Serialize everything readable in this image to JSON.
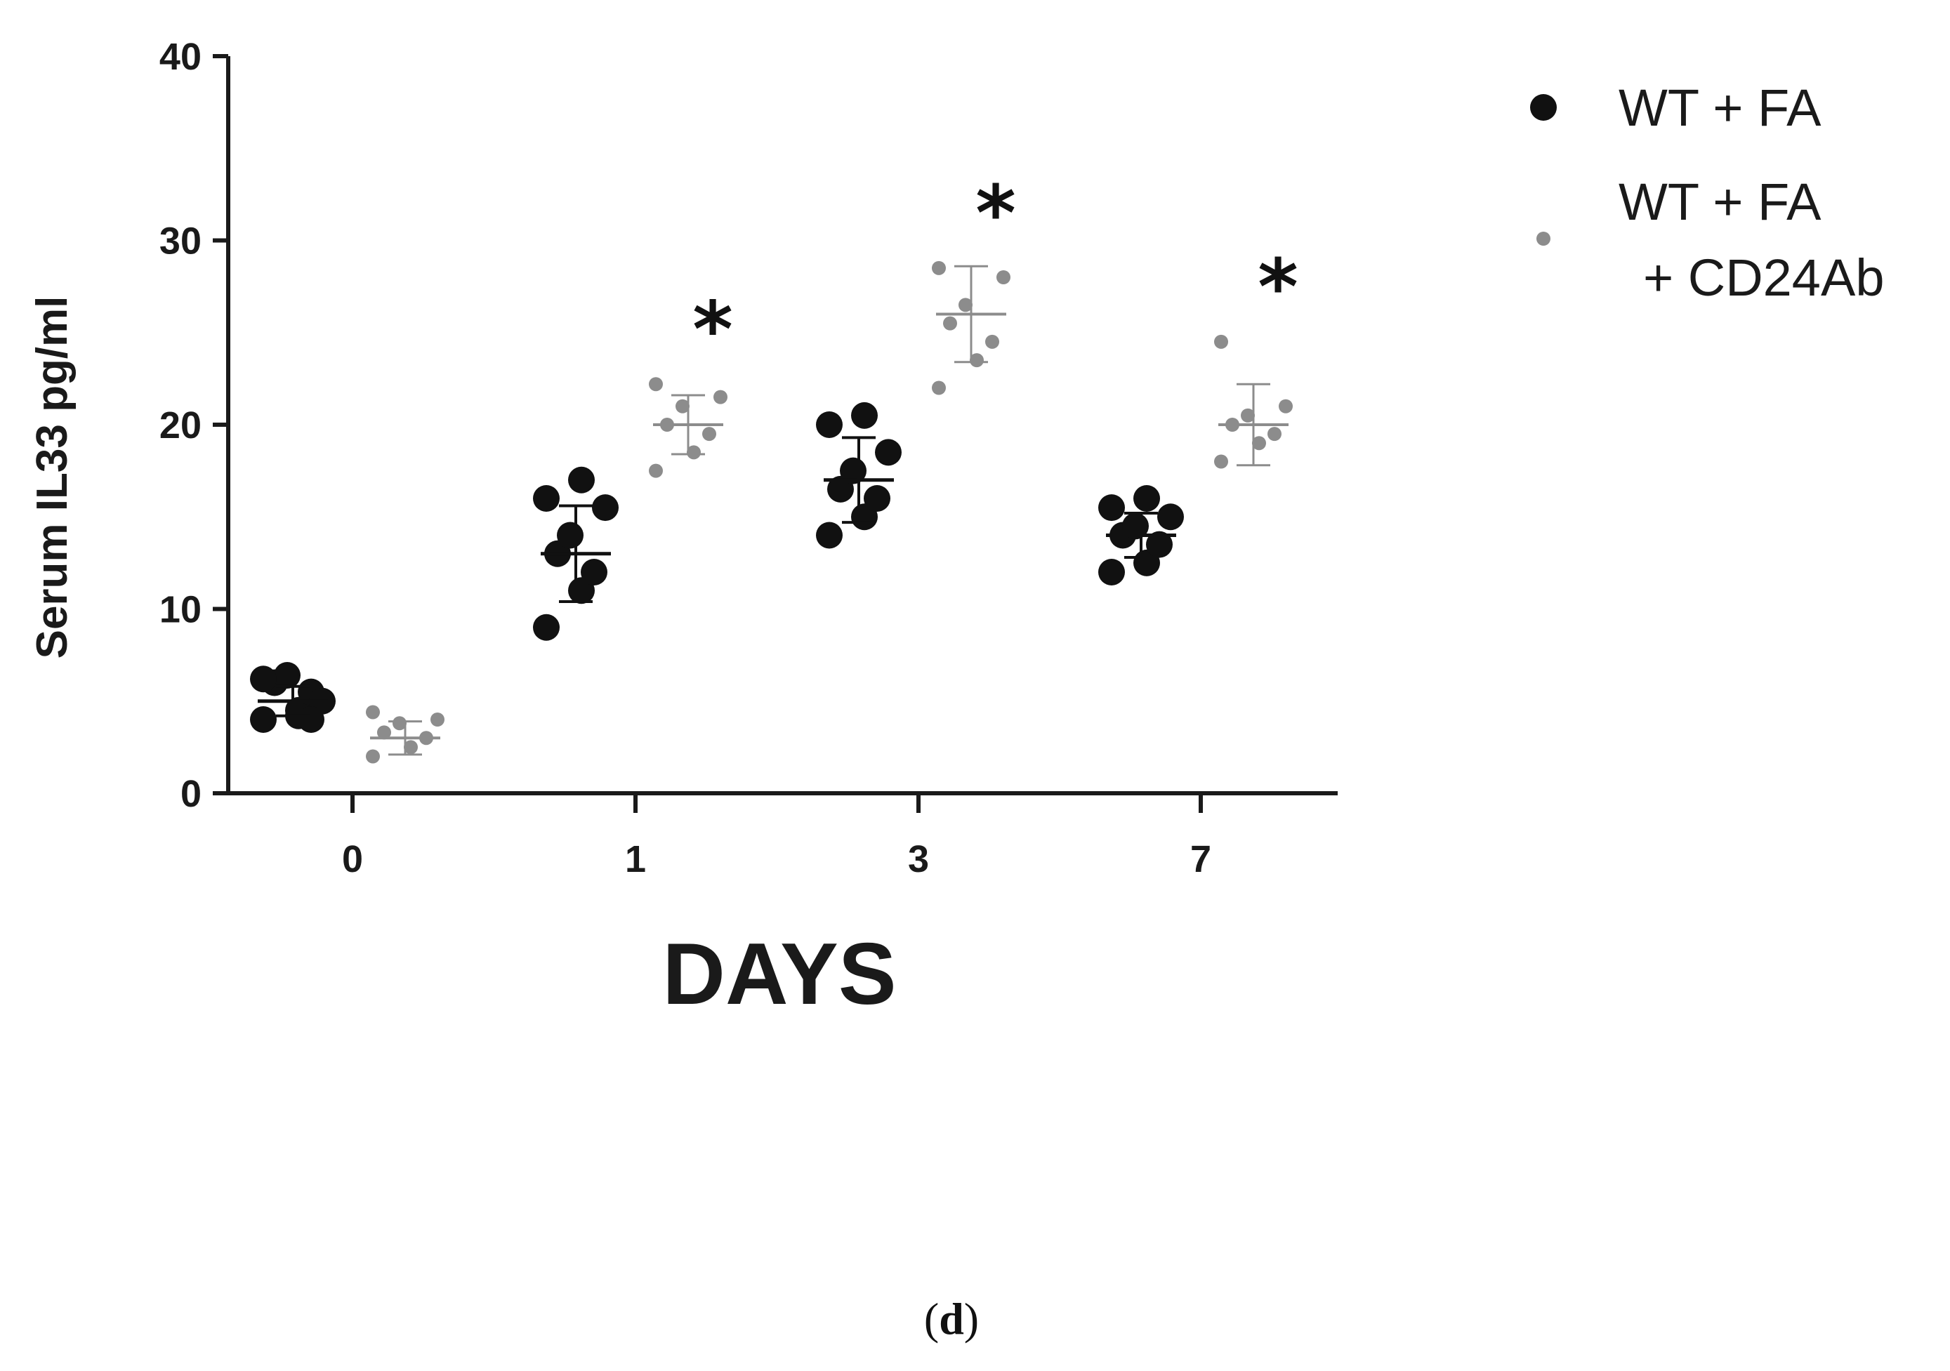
{
  "chart_data": {
    "type": "scatter",
    "ylabel": "Serum IL33 pg/ml",
    "xlabel": "DAYS",
    "ylim": [
      0,
      40
    ],
    "yticks": [
      "0",
      "10",
      "20",
      "30",
      "40"
    ],
    "categories": [
      "0",
      "1",
      "3",
      "7"
    ],
    "grid": false,
    "legend_position": "top-right",
    "panel_label": "(d)",
    "panel_label_parts": {
      "open": "(",
      "letter": "d",
      "close": ")"
    },
    "series": [
      {
        "name_lines": [
          "WT + FA"
        ],
        "color": "#111111",
        "marker": "large-dot",
        "points": [
          [
            4,
            4.5,
            5.5,
            6.0,
            6.4,
            5.0,
            6.2,
            4.2,
            4.0
          ],
          [
            9.0,
            11.0,
            12.0,
            13.0,
            14.0,
            15.5,
            16.0,
            17.0
          ],
          [
            14.0,
            15.0,
            16.0,
            16.5,
            17.5,
            18.5,
            20.0,
            20.5
          ],
          [
            12.0,
            12.5,
            13.5,
            14.0,
            14.5,
            15.0,
            15.5,
            16.0
          ]
        ],
        "mean": [
          5.0,
          13.0,
          17.0,
          14.0
        ],
        "sd": [
          0.8,
          2.6,
          2.3,
          1.2
        ]
      },
      {
        "name_lines": [
          "WT + FA",
          "+ CD24Ab"
        ],
        "color": "#8c8c8c",
        "marker": "small-dot",
        "points": [
          [
            2.0,
            2.5,
            3.0,
            3.3,
            3.8,
            4.0,
            4.4
          ],
          [
            17.5,
            18.5,
            19.5,
            20.0,
            21.0,
            21.5,
            22.2
          ],
          [
            22.0,
            23.5,
            24.5,
            25.5,
            26.5,
            28.0,
            28.5
          ],
          [
            18.0,
            19.0,
            19.5,
            20.0,
            20.5,
            21.0,
            24.5
          ]
        ],
        "mean": [
          3.0,
          20.0,
          26.0,
          20.0
        ],
        "sd": [
          0.9,
          1.6,
          2.6,
          2.2
        ]
      }
    ],
    "annotations": [
      {
        "category": "1",
        "series": 1,
        "text": "*"
      },
      {
        "category": "3",
        "series": 1,
        "text": "*"
      },
      {
        "category": "7",
        "series": 1,
        "text": "*"
      }
    ]
  }
}
